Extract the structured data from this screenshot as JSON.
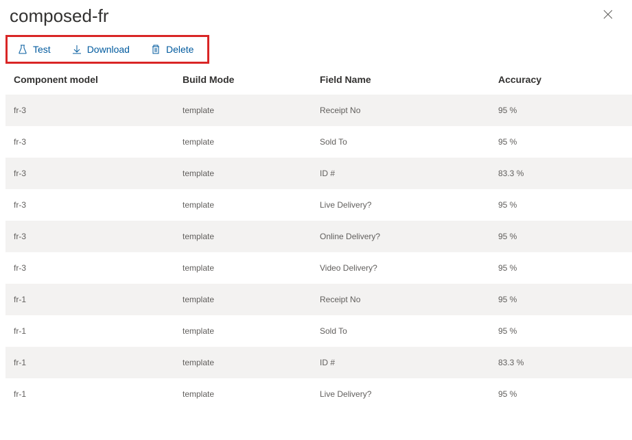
{
  "header": {
    "title": "composed-fr"
  },
  "toolbar": {
    "test_label": "Test",
    "download_label": "Download",
    "delete_label": "Delete"
  },
  "table": {
    "columns": [
      "Component model",
      "Build Mode",
      "Field Name",
      "Accuracy"
    ],
    "rows": [
      [
        "fr-3",
        "template",
        "Receipt No",
        "95 %"
      ],
      [
        "fr-3",
        "template",
        "Sold To",
        "95 %"
      ],
      [
        "fr-3",
        "template",
        "ID #",
        "83.3 %"
      ],
      [
        "fr-3",
        "template",
        "Live Delivery?",
        "95 %"
      ],
      [
        "fr-3",
        "template",
        "Online Delivery?",
        "95 %"
      ],
      [
        "fr-3",
        "template",
        "Video Delivery?",
        "95 %"
      ],
      [
        "fr-1",
        "template",
        "Receipt No",
        "95 %"
      ],
      [
        "fr-1",
        "template",
        "Sold To",
        "95 %"
      ],
      [
        "fr-1",
        "template",
        "ID #",
        "83.3 %"
      ],
      [
        "fr-1",
        "template",
        "Live Delivery?",
        "95 %"
      ]
    ]
  },
  "colors": {
    "accent": "#005a9e",
    "highlight_border": "#d92626",
    "row_alt": "#f3f2f1",
    "text_primary": "#323130",
    "text_secondary": "#605e5c"
  }
}
